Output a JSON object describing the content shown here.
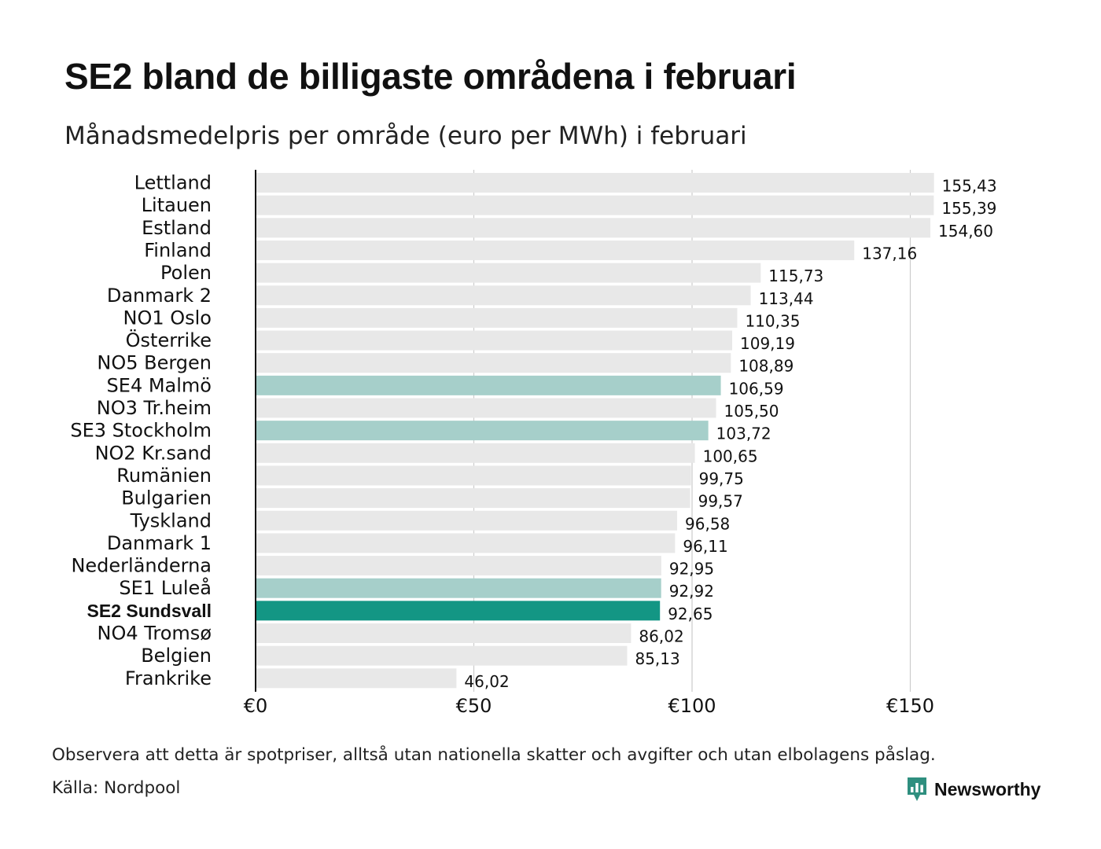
{
  "header": {
    "title": "SE2 bland de billigaste områdena i februari",
    "subtitle": "Månadsmedelpris per område (euro per MWh) i februari"
  },
  "footer": {
    "note": "Observera att detta är spotpriser, alltså utan nationella skatter och avgifter och utan elbolagens påslag.",
    "source": "Källa: Nordpool",
    "brand": "Newsworthy"
  },
  "colors": {
    "bar_default": "#e8e8e8",
    "bar_se": "#a6cfca",
    "bar_highlight": "#139684",
    "grid": "#cccccc",
    "axis": "#111111",
    "brand": "#2f8f7f"
  },
  "chart_data": {
    "type": "bar",
    "orientation": "horizontal",
    "title": "SE2 bland de billigaste områdena i februari",
    "subtitle": "Månadsmedelpris per område (euro per MWh) i februari",
    "xlabel": "",
    "ylabel": "",
    "xlim": [
      0,
      165
    ],
    "xticks": [
      0,
      50,
      100,
      150
    ],
    "xtick_labels": [
      "€0",
      "€50",
      "€100",
      "€150"
    ],
    "grid": true,
    "categories": [
      "Lettland",
      "Litauen",
      "Estland",
      "Finland",
      "Polen",
      "Danmark 2",
      "NO1 Oslo",
      "Österrike",
      "NO5 Bergen",
      "SE4 Malmö",
      "NO3 Tr.heim",
      "SE3 Stockholm",
      "NO2 Kr.sand",
      "Rumänien",
      "Bulgarien",
      "Tyskland",
      "Danmark 1",
      "Nederländerna",
      "SE1 Luleå",
      "SE2 Sundsvall",
      "NO4 Tromsø",
      "Belgien",
      "Frankrike"
    ],
    "values": [
      155.43,
      155.39,
      154.6,
      137.16,
      115.73,
      113.44,
      110.35,
      109.19,
      108.89,
      106.59,
      105.5,
      103.72,
      100.65,
      99.75,
      99.57,
      96.58,
      96.11,
      92.95,
      92.92,
      92.65,
      86.02,
      85.13,
      46.02
    ],
    "value_labels": [
      "155,43",
      "155,39",
      "154,60",
      "137,16",
      "115,73",
      "113,44",
      "110,35",
      "109,19",
      "108,89",
      "106,59",
      "105,50",
      "103,72",
      "100,65",
      "99,75",
      "99,57",
      "96,58",
      "96,11",
      "92,95",
      "92,92",
      "92,65",
      "86,02",
      "85,13",
      "46,02"
    ],
    "swedish_areas": [
      "SE1 Luleå",
      "SE3 Stockholm",
      "SE4 Malmö"
    ],
    "highlight": "SE2 Sundsvall"
  }
}
